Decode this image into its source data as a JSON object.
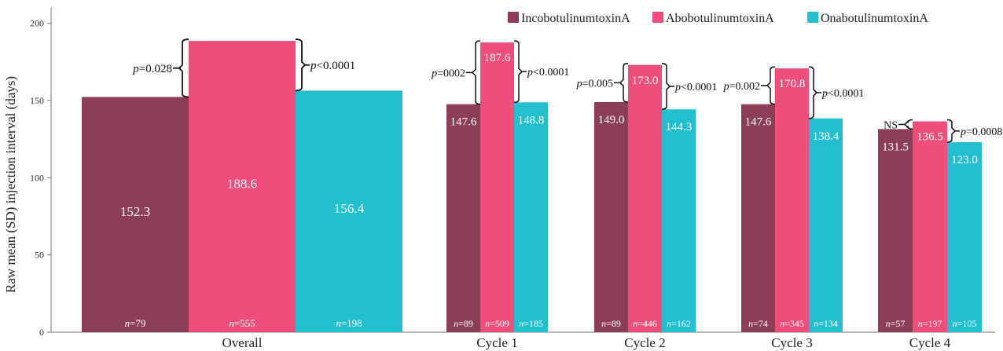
{
  "chart_data": {
    "type": "bar",
    "ylabel": "Raw mean (SD) injection interval (days)",
    "ylim": [
      0,
      210
    ],
    "yticks": [
      0,
      50,
      100,
      150,
      200
    ],
    "grid": false,
    "legend_position": "top-right",
    "categories": [
      "Overall",
      "Cycle 1",
      "Cycle 2",
      "Cycle 3",
      "Cycle 4"
    ],
    "series": [
      {
        "name": "IncobotulinumtoxinA",
        "color": "#8c3d58",
        "values": [
          152.3,
          147.6,
          149.0,
          147.6,
          131.5
        ],
        "value_labels": [
          "152.3",
          "147.6",
          "149.0",
          "147.6",
          "131.5"
        ],
        "n_labels": [
          "79",
          "89",
          "89",
          "74",
          "57"
        ]
      },
      {
        "name": "AbobotulinumtoxinA",
        "color": "#ef4e7c",
        "values": [
          188.6,
          187.6,
          173.0,
          170.8,
          136.5
        ],
        "value_labels": [
          "188.6",
          "187.6",
          "173.0",
          "170.8",
          "136.5"
        ],
        "n_labels": [
          "555",
          "509",
          "446",
          "345",
          "197"
        ]
      },
      {
        "name": "OnabotulinumtoxinA",
        "color": "#22bfcf",
        "values": [
          156.4,
          148.8,
          144.3,
          138.4,
          123.0
        ],
        "value_labels": [
          "156.4",
          "148.8",
          "144.3",
          "138.4",
          "123.0"
        ],
        "n_labels": [
          "198",
          "185",
          "162",
          "134",
          "105"
        ]
      }
    ],
    "n_prefix": "n=",
    "comparisons": [
      {
        "left": "p=0.028",
        "right": "p<0.0001"
      },
      {
        "left": "p=0002",
        "right": "p<0.0001"
      },
      {
        "left": "p=0.005",
        "right": "p<0.0001"
      },
      {
        "left": "p=0.002",
        "right": "p<0.0001"
      },
      {
        "left": "NS",
        "right": "p=0.0008"
      }
    ]
  }
}
